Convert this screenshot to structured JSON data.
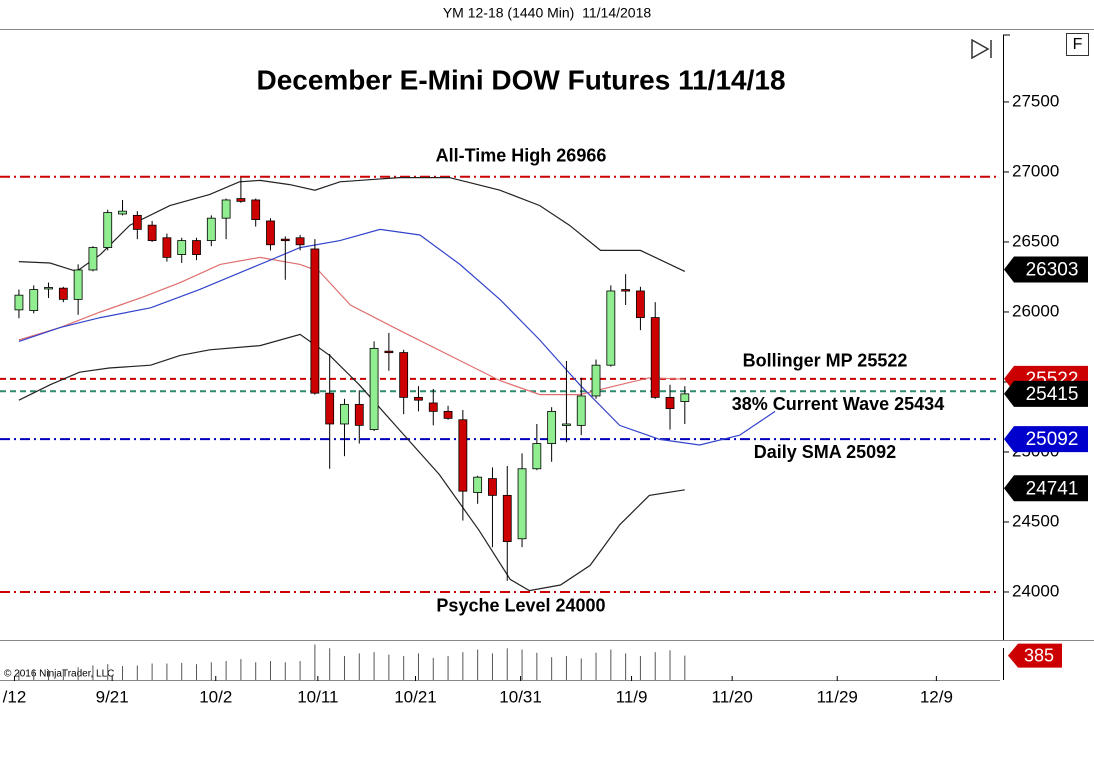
{
  "header": "YM 12-18 (1440 Min)  11/14/2018",
  "copyright": "© 2016 NinjaTrader, LLC",
  "chart_data": {
    "type": "candlestick",
    "title": "December E-Mini DOW Futures 11/14/18",
    "x": [
      0,
      1,
      2,
      3,
      4,
      5,
      6,
      7,
      8,
      9,
      10,
      11,
      12,
      13,
      14,
      15,
      16,
      17,
      18,
      19,
      20,
      21,
      22,
      23,
      24,
      25,
      26,
      27,
      28,
      29,
      30,
      31,
      32,
      33,
      34,
      35,
      36,
      37,
      38,
      39,
      40,
      41,
      42,
      43,
      44,
      45
    ],
    "open": [
      26015,
      26010,
      26170,
      26170,
      26090,
      26300,
      26460,
      26700,
      26690,
      26620,
      26530,
      26410,
      26510,
      26510,
      26670,
      26810,
      26800,
      26650,
      26520,
      26530,
      26450,
      25420,
      25200,
      25340,
      25160,
      25720,
      25710,
      25390,
      25350,
      25290,
      25230,
      24710,
      24810,
      24690,
      24380,
      24880,
      25060,
      25190,
      25190,
      25400,
      25620,
      26160,
      26150,
      25960,
      25390,
      25360
    ],
    "high": [
      26160,
      26190,
      26210,
      26180,
      26340,
      26470,
      26730,
      26800,
      26720,
      26650,
      26560,
      26530,
      26530,
      26690,
      26810,
      26960,
      26810,
      26670,
      26540,
      26550,
      26520,
      25700,
      25380,
      25440,
      25790,
      25850,
      25730,
      25470,
      25450,
      25330,
      25300,
      24830,
      24890,
      24900,
      24990,
      25200,
      25320,
      25650,
      25530,
      25660,
      26190,
      26270,
      26180,
      26070,
      25480,
      25470
    ],
    "low": [
      25955,
      25990,
      26100,
      26070,
      25980,
      26290,
      26440,
      26690,
      26520,
      26500,
      26360,
      26350,
      26370,
      26470,
      26520,
      26780,
      26610,
      26440,
      26230,
      26440,
      25410,
      24880,
      24970,
      25060,
      25150,
      25580,
      25270,
      25290,
      25190,
      25230,
      24510,
      24630,
      24320,
      24080,
      24320,
      24870,
      24930,
      25070,
      25120,
      25380,
      25610,
      26050,
      25870,
      25380,
      25160,
      25200
    ],
    "close": [
      26120,
      26160,
      26175,
      26090,
      26300,
      26460,
      26710,
      26720,
      26590,
      26510,
      26390,
      26510,
      26410,
      26670,
      26800,
      26790,
      26660,
      26480,
      26510,
      26480,
      25420,
      25200,
      25340,
      25190,
      25740,
      25710,
      25390,
      25370,
      25290,
      25240,
      24720,
      24820,
      24690,
      24360,
      24880,
      25060,
      25290,
      25200,
      25400,
      25620,
      26150,
      26150,
      25960,
      25390,
      25310,
      25415
    ],
    "up_color": "#90ee90",
    "down_color": "#cc0000",
    "xlim": [
      -1.28,
      66.3
    ],
    "xticks": [
      {
        "value": -0.3,
        "label": "/12"
      },
      {
        "value": 6.3,
        "label": "9/21"
      },
      {
        "value": 13.3,
        "label": "10/2"
      },
      {
        "value": 20.2,
        "label": "10/11"
      },
      {
        "value": 26.8,
        "label": "10/21"
      },
      {
        "value": 33.9,
        "label": "10/31"
      },
      {
        "value": 41.4,
        "label": "11/9"
      },
      {
        "value": 48.2,
        "label": "11/20"
      },
      {
        "value": 55.3,
        "label": "11/29"
      },
      {
        "value": 62.0,
        "label": "12/9"
      }
    ],
    "ylim": [
      23657,
      28014
    ],
    "yticks": [
      24000,
      24500,
      25000,
      25500,
      26000,
      26500,
      27000,
      27500
    ],
    "overlays": [
      {
        "color": "#222222",
        "x": [
          0,
          2.1,
          3.9,
          5.5,
          7.5,
          10.2,
          12.9,
          14.9,
          16.3,
          18.3,
          20,
          21.7,
          25.7,
          29.1,
          32.5,
          35.2,
          37.2,
          39.3,
          42,
          45
        ],
        "values": [
          26360,
          26350,
          26290,
          26410,
          26620,
          26760,
          26840,
          26930,
          26940,
          26910,
          26870,
          26930,
          26960,
          26960,
          26870,
          26760,
          26620,
          26440,
          26440,
          26290
        ]
      },
      {
        "color": "#222222",
        "x": [
          0,
          2.1,
          4.1,
          6.1,
          8.9,
          10.9,
          12.9,
          16.3,
          19,
          21,
          23,
          25.7,
          28.4,
          31.1,
          33.2,
          34.5,
          36.6,
          38.6,
          40.6,
          42.6,
          45
        ],
        "values": [
          25370,
          25480,
          25570,
          25600,
          25620,
          25690,
          25730,
          25760,
          25840,
          25690,
          25480,
          25160,
          24840,
          24440,
          24090,
          24010,
          24050,
          24190,
          24480,
          24690,
          24730
        ]
      },
      {
        "color": "#e06f6f",
        "x": [
          0,
          2.8,
          5.5,
          8.2,
          10.9,
          13.6,
          16.3,
          19,
          20.3,
          22.4,
          25.7,
          29.1,
          32.5,
          35.2,
          37.9,
          40.6,
          42.6,
          45
        ],
        "values": [
          25800,
          25890,
          26000,
          26100,
          26210,
          26340,
          26390,
          26340,
          26290,
          26050,
          25870,
          25690,
          25510,
          25410,
          25410,
          25480,
          25530,
          25520
        ]
      },
      {
        "color": "#3344cc",
        "x": [
          0,
          2.8,
          5.5,
          8.9,
          12.2,
          15.6,
          19,
          21.7,
          24.4,
          27.1,
          29.8,
          32.5,
          35.2,
          37.9,
          40.6,
          43.3,
          46,
          48.7,
          51.1
        ],
        "values": [
          25790,
          25890,
          25960,
          26030,
          26160,
          26310,
          26460,
          26510,
          26590,
          26550,
          26340,
          26090,
          25800,
          25480,
          25190,
          25090,
          25050,
          25120,
          25290
        ]
      }
    ],
    "levels": [
      {
        "value": 26966,
        "label": "All-Time High 26966",
        "color": "#cc0000",
        "style": "dashdot"
      },
      {
        "value": 25522,
        "label": "Bollinger MP 25522",
        "color": "#cc0000",
        "style": "dash"
      },
      {
        "value": 25434,
        "label": "38% Current Wave 25434",
        "color": "#2e8b6e",
        "style": "dash"
      },
      {
        "value": 25092,
        "label": "Daily SMA 25092",
        "color": "#0000bb",
        "style": "dashdot"
      },
      {
        "value": 24000,
        "label": "Psyche Level 24000",
        "color": "#cc0000",
        "style": "dashdot"
      }
    ],
    "price_markers": [
      {
        "value": 26303,
        "color": "#000000"
      },
      {
        "value": 25522,
        "color": "#cc0000"
      },
      {
        "value": 25415,
        "color": "#000000"
      },
      {
        "value": 25092,
        "color": "#0000cc"
      },
      {
        "value": 24741,
        "color": "#000000"
      }
    ],
    "volume": {
      "values": [
        150,
        170,
        160,
        170,
        200,
        230,
        250,
        220,
        230,
        260,
        260,
        270,
        250,
        280,
        300,
        330,
        280,
        300,
        280,
        300,
        560,
        500,
        380,
        420,
        440,
        400,
        380,
        420,
        350,
        380,
        440,
        480,
        420,
        500,
        480,
        430,
        360,
        380,
        340,
        430,
        480,
        420,
        380,
        440,
        470,
        385
      ],
      "ylim": [
        0,
        600
      ],
      "marker": 385,
      "color": "#cc0000"
    }
  }
}
